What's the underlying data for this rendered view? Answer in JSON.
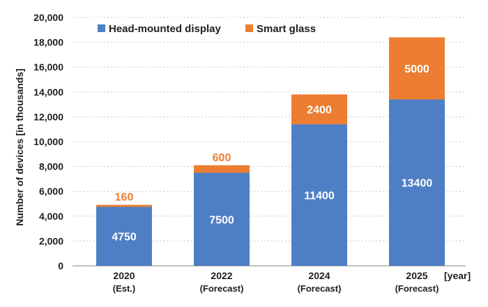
{
  "chart_data": {
    "type": "bar",
    "stacked": true,
    "categories": [
      "2020",
      "2022",
      "2024",
      "2025"
    ],
    "category_sublabels": [
      "(Est.)",
      "(Forecast)",
      "(Forecast)",
      "(Forecast)"
    ],
    "series": [
      {
        "name": "Head-mounted display",
        "color": "#4e7fc4",
        "values": [
          4750,
          7500,
          11400,
          13400
        ]
      },
      {
        "name": "Smart glass",
        "color": "#ed7d31",
        "values": [
          160,
          600,
          2400,
          5000
        ]
      }
    ],
    "ylabel": "Number of devices [in thousands]",
    "xunit": "[year]",
    "ylim": [
      0,
      20000
    ],
    "yticks": [
      "0",
      "2,000",
      "4,000",
      "6,000",
      "8,000",
      "10,000",
      "12,000",
      "14,000",
      "16,000",
      "18,000",
      "20,000"
    ],
    "grid": true,
    "legend_position": "top-left"
  }
}
